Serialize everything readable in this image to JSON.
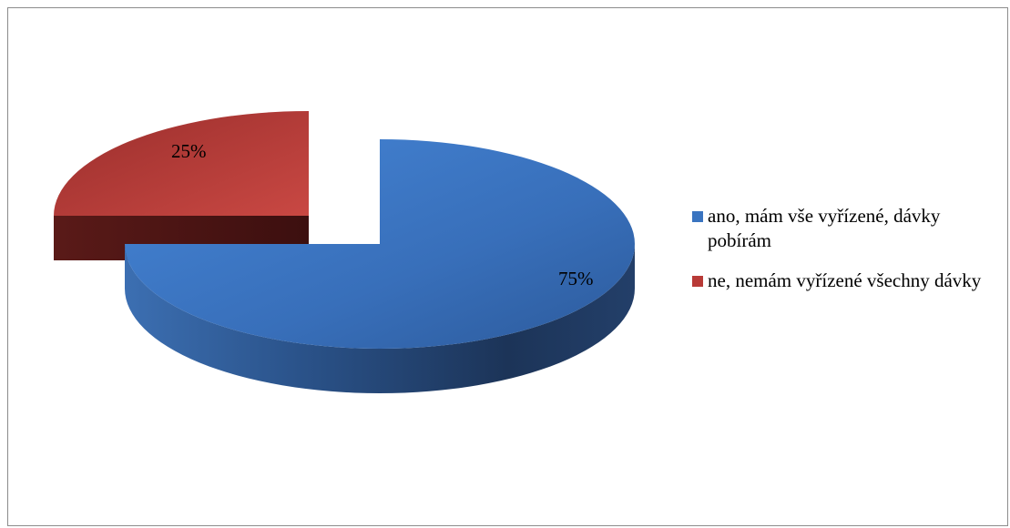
{
  "chart_data": {
    "type": "pie",
    "style": "3d-exploded",
    "title": "",
    "categories": [
      "ano, mám vše vyřízené, dávky pobírám",
      "ne, nemám vyřízené všechny dávky"
    ],
    "values": [
      75,
      25
    ],
    "data_labels": [
      "75%",
      "25%"
    ],
    "colors": [
      "#3a74c0",
      "#b83a37"
    ],
    "legend_position": "right"
  }
}
